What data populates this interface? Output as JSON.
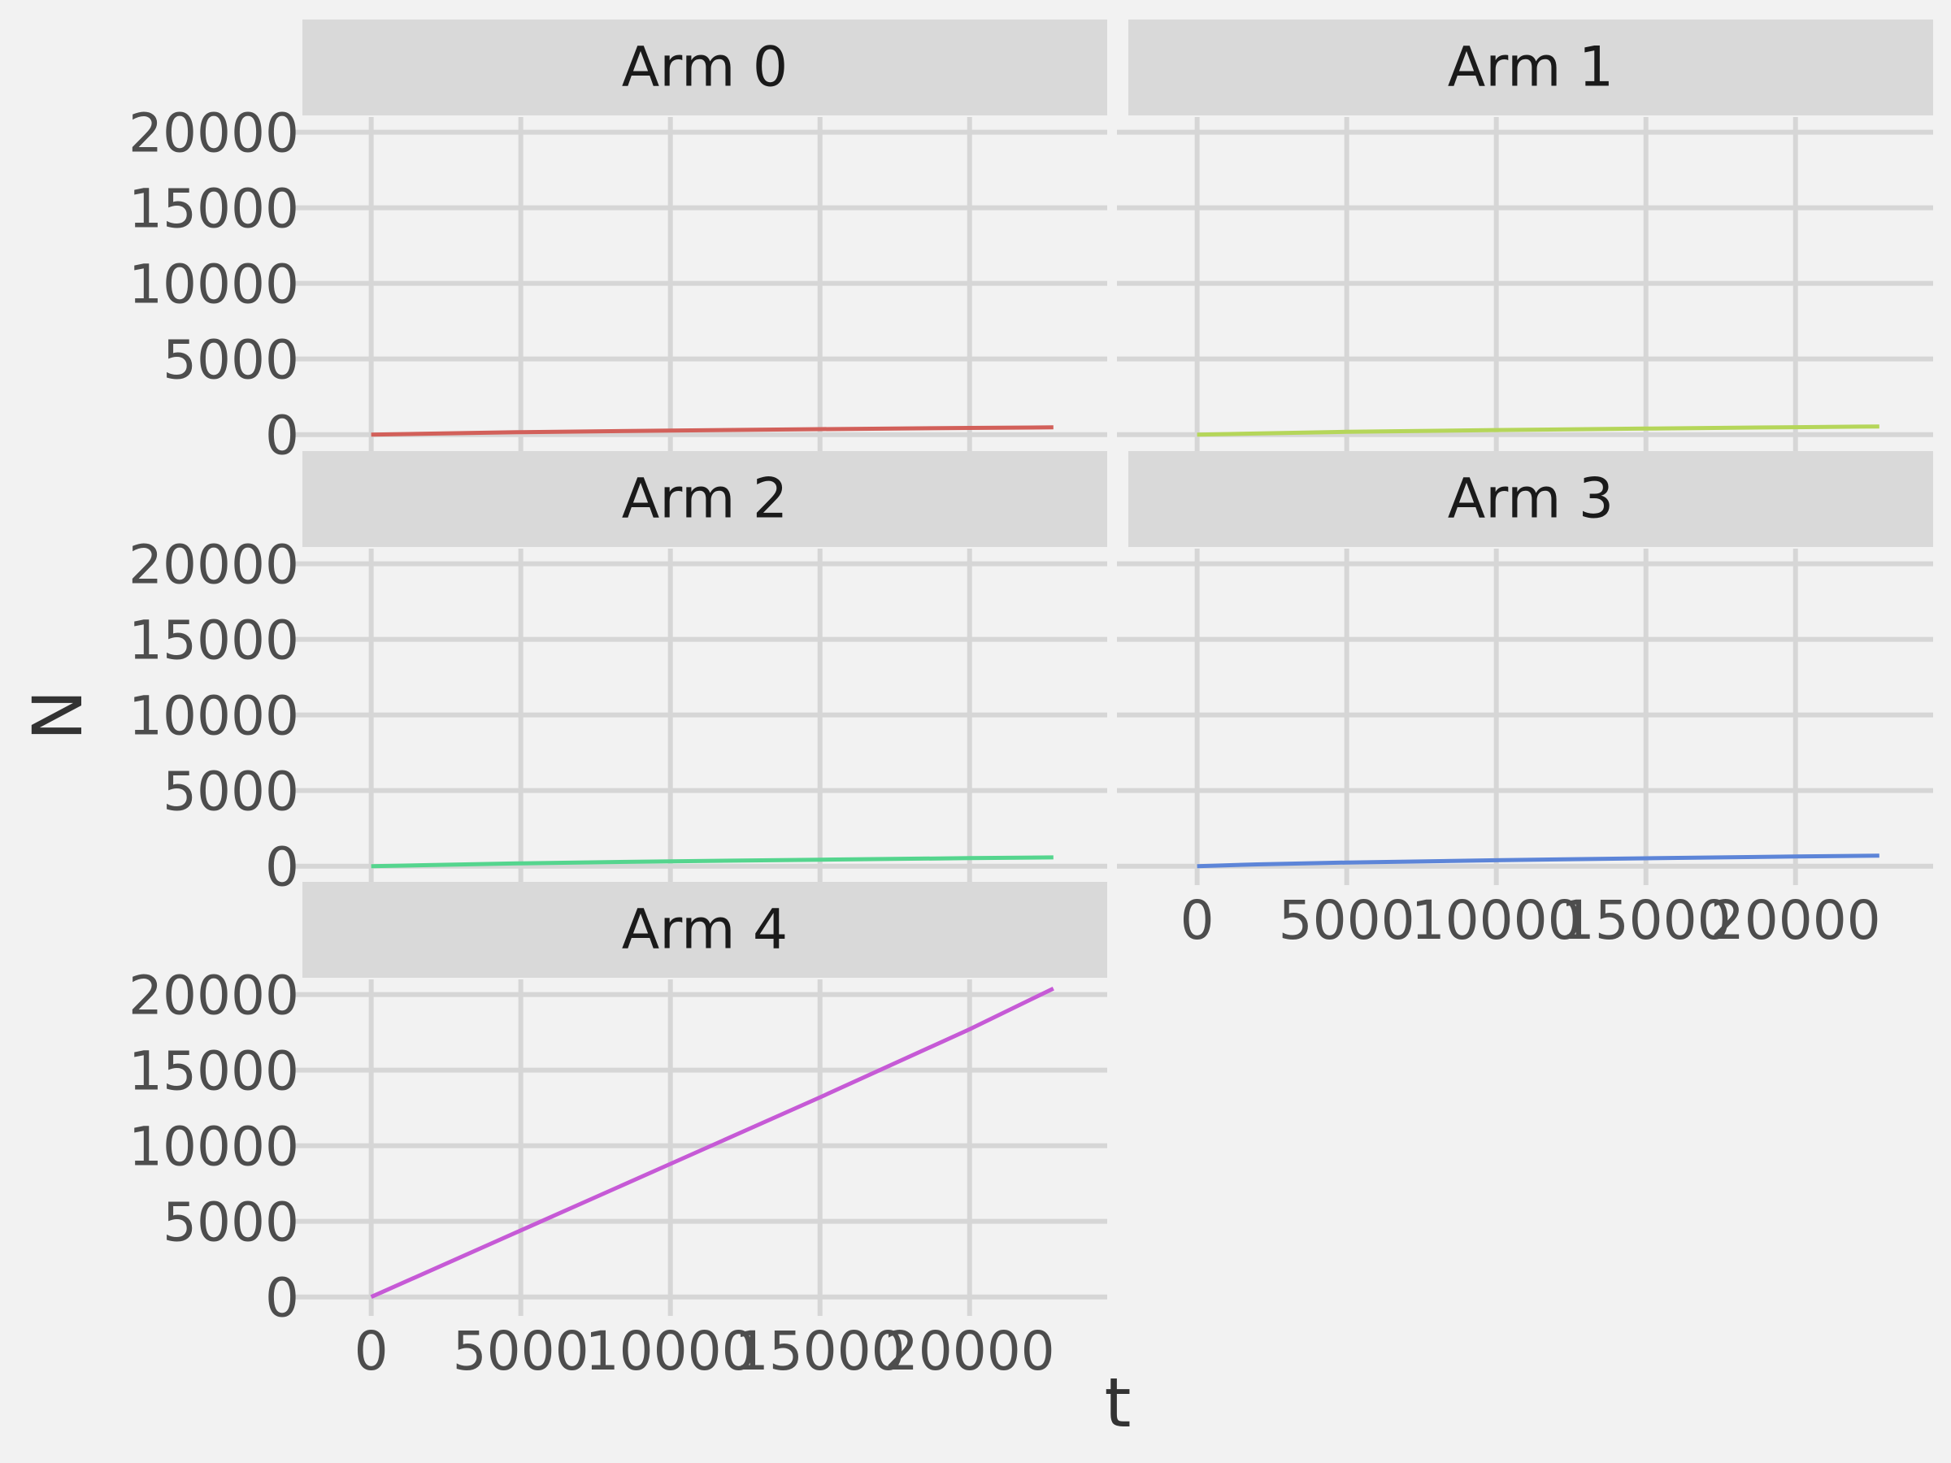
{
  "chart_data": {
    "type": "line",
    "x_label": "t",
    "y_label": "N",
    "xlim": [
      -2300,
      24600
    ],
    "ylim": [
      -500,
      21000
    ],
    "x_ticks": [
      0,
      5000,
      10000,
      15000,
      20000
    ],
    "y_ticks": [
      0,
      5000,
      10000,
      15000,
      20000
    ],
    "x_tick_labels": [
      "0",
      "5000",
      "10000",
      "15000",
      "20000"
    ],
    "y_tick_labels": [
      "0",
      "5000",
      "10000",
      "15000",
      "20000"
    ],
    "grid": true,
    "panels": [
      {
        "title": "Arm 0",
        "color": "#d2605a",
        "x": [
          0,
          5000,
          10000,
          15000,
          20000,
          22800
        ],
        "y": [
          0,
          160,
          270,
          360,
          440,
          480
        ]
      },
      {
        "title": "Arm 1",
        "color": "#b5d65a",
        "x": [
          0,
          5000,
          10000,
          15000,
          20000,
          22800
        ],
        "y": [
          0,
          180,
          300,
          400,
          490,
          540
        ]
      },
      {
        "title": "Arm 2",
        "color": "#55d58e",
        "x": [
          0,
          5000,
          10000,
          15000,
          20000,
          22800
        ],
        "y": [
          0,
          190,
          320,
          430,
          530,
          580
        ]
      },
      {
        "title": "Arm 3",
        "color": "#5d85d8",
        "x": [
          0,
          2000,
          5000,
          10000,
          15000,
          20000,
          22800
        ],
        "y": [
          0,
          120,
          240,
          390,
          520,
          640,
          700
        ]
      },
      {
        "title": "Arm 4",
        "color": "#c65ad6",
        "x": [
          0,
          5000,
          10000,
          15000,
          20000,
          22800
        ],
        "y": [
          0,
          4400,
          8800,
          13200,
          17700,
          20400
        ]
      }
    ]
  }
}
